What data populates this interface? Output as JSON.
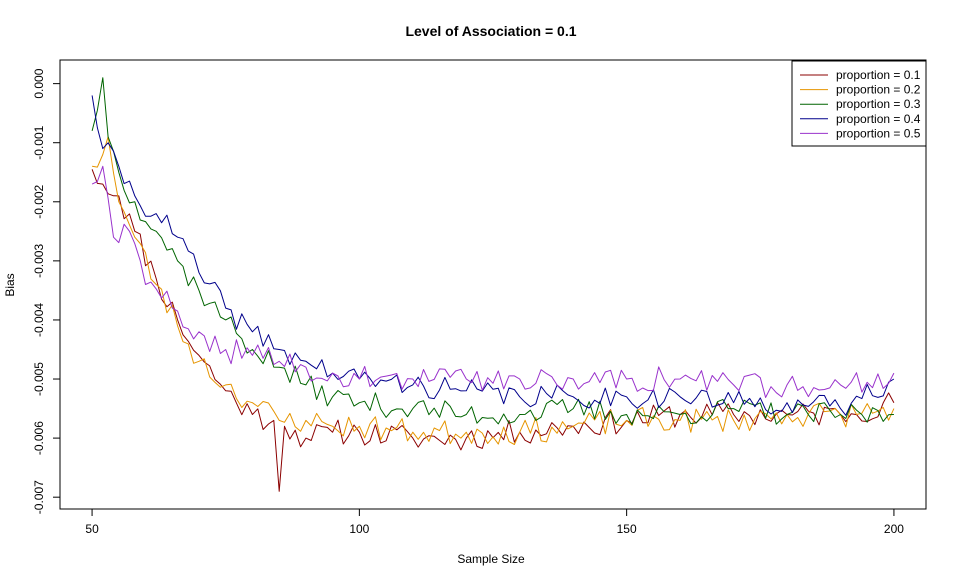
{
  "chart_data": {
    "type": "line",
    "title": "Level of Association = 0.1",
    "xlabel": "Sample Size",
    "ylabel": "Bias",
    "xlim": [
      44,
      206
    ],
    "ylim": [
      -0.0072,
      0.0004
    ],
    "x_ticks": [
      50,
      100,
      150,
      200
    ],
    "x_tick_labels": [
      "50",
      "100",
      "150",
      "200"
    ],
    "y_ticks": [
      -0.007,
      -0.006,
      -0.005,
      -0.004,
      -0.003,
      -0.002,
      -0.001,
      0.0
    ],
    "y_tick_labels": [
      "-0.007",
      "-0.006",
      "-0.005",
      "-0.004",
      "-0.003",
      "-0.002",
      "-0.001",
      "0.000"
    ],
    "grid": false,
    "legend_position": "top-right",
    "series": [
      {
        "name": "proportion = 0.1",
        "color": "#8B0000",
        "anchors": [
          [
            50,
            -0.00145
          ],
          [
            52,
            -0.0017
          ],
          [
            55,
            -0.0019
          ],
          [
            58,
            -0.0025
          ],
          [
            62,
            -0.0033
          ],
          [
            66,
            -0.004
          ],
          [
            70,
            -0.0046
          ],
          [
            75,
            -0.0052
          ],
          [
            80,
            -0.0056
          ],
          [
            84,
            -0.0057
          ],
          [
            85,
            -0.0069
          ],
          [
            86,
            -0.0058
          ],
          [
            90,
            -0.006
          ],
          [
            95,
            -0.0059
          ],
          [
            100,
            -0.0059
          ],
          [
            110,
            -0.006
          ],
          [
            120,
            -0.006
          ],
          [
            130,
            -0.0059
          ],
          [
            140,
            -0.0058
          ],
          [
            150,
            -0.0057
          ],
          [
            160,
            -0.0056
          ],
          [
            170,
            -0.0056
          ],
          [
            180,
            -0.0056
          ],
          [
            190,
            -0.0056
          ],
          [
            200,
            -0.0054
          ]
        ],
        "noise": 0.00022,
        "seed": 11
      },
      {
        "name": "proportion = 0.2",
        "color": "#E69500",
        "anchors": [
          [
            50,
            -0.0014
          ],
          [
            52,
            -0.0012
          ],
          [
            53,
            -0.0009
          ],
          [
            55,
            -0.002
          ],
          [
            58,
            -0.0026
          ],
          [
            62,
            -0.0034
          ],
          [
            66,
            -0.0041
          ],
          [
            70,
            -0.0047
          ],
          [
            75,
            -0.0051
          ],
          [
            80,
            -0.0054
          ],
          [
            85,
            -0.0057
          ],
          [
            90,
            -0.0057
          ],
          [
            95,
            -0.0058
          ],
          [
            100,
            -0.0058
          ],
          [
            110,
            -0.0059
          ],
          [
            120,
            -0.0059
          ],
          [
            130,
            -0.0059
          ],
          [
            140,
            -0.0058
          ],
          [
            150,
            -0.0057
          ],
          [
            160,
            -0.0057
          ],
          [
            170,
            -0.0057
          ],
          [
            180,
            -0.0056
          ],
          [
            190,
            -0.0056
          ],
          [
            200,
            -0.0055
          ]
        ],
        "noise": 0.00022,
        "seed": 23
      },
      {
        "name": "proportion = 0.3",
        "color": "#006400",
        "anchors": [
          [
            50,
            -0.0008
          ],
          [
            52,
            0.0001
          ],
          [
            53,
            -0.0009
          ],
          [
            55,
            -0.0015
          ],
          [
            58,
            -0.002
          ],
          [
            62,
            -0.0025
          ],
          [
            66,
            -0.003
          ],
          [
            70,
            -0.0035
          ],
          [
            75,
            -0.004
          ],
          [
            80,
            -0.0045
          ],
          [
            85,
            -0.0048
          ],
          [
            90,
            -0.0051
          ],
          [
            95,
            -0.0053
          ],
          [
            100,
            -0.0054
          ],
          [
            110,
            -0.0055
          ],
          [
            120,
            -0.0056
          ],
          [
            130,
            -0.0056
          ],
          [
            140,
            -0.0055
          ],
          [
            150,
            -0.0056
          ],
          [
            160,
            -0.0056
          ],
          [
            170,
            -0.0055
          ],
          [
            180,
            -0.0056
          ],
          [
            190,
            -0.0056
          ],
          [
            200,
            -0.0056
          ]
        ],
        "noise": 0.0002,
        "seed": 37
      },
      {
        "name": "proportion = 0.4",
        "color": "#00008B",
        "anchors": [
          [
            50,
            -0.0002
          ],
          [
            52,
            -0.0011
          ],
          [
            55,
            -0.0014
          ],
          [
            58,
            -0.0019
          ],
          [
            62,
            -0.0022
          ],
          [
            66,
            -0.0026
          ],
          [
            70,
            -0.0032
          ],
          [
            75,
            -0.0038
          ],
          [
            80,
            -0.0042
          ],
          [
            85,
            -0.0045
          ],
          [
            90,
            -0.0047
          ],
          [
            95,
            -0.0049
          ],
          [
            100,
            -0.005
          ],
          [
            110,
            -0.0051
          ],
          [
            120,
            -0.0052
          ],
          [
            130,
            -0.0053
          ],
          [
            140,
            -0.0053
          ],
          [
            150,
            -0.0053
          ],
          [
            160,
            -0.0053
          ],
          [
            170,
            -0.0054
          ],
          [
            180,
            -0.0054
          ],
          [
            190,
            -0.0055
          ],
          [
            200,
            -0.005
          ]
        ],
        "noise": 0.0002,
        "seed": 41
      },
      {
        "name": "proportion = 0.5",
        "color": "#9932CC",
        "anchors": [
          [
            50,
            -0.0017
          ],
          [
            52,
            -0.0014
          ],
          [
            54,
            -0.0026
          ],
          [
            57,
            -0.0025
          ],
          [
            60,
            -0.0034
          ],
          [
            65,
            -0.0038
          ],
          [
            70,
            -0.0042
          ],
          [
            75,
            -0.0045
          ],
          [
            80,
            -0.0046
          ],
          [
            85,
            -0.0047
          ],
          [
            90,
            -0.0048
          ],
          [
            95,
            -0.0049
          ],
          [
            100,
            -0.005
          ],
          [
            110,
            -0.005
          ],
          [
            120,
            -0.005
          ],
          [
            130,
            -0.005
          ],
          [
            140,
            -0.005
          ],
          [
            150,
            -0.005
          ],
          [
            160,
            -0.005
          ],
          [
            170,
            -0.0051
          ],
          [
            180,
            -0.0051
          ],
          [
            190,
            -0.0051
          ],
          [
            200,
            -0.0049
          ]
        ],
        "noise": 0.00022,
        "seed": 59
      }
    ]
  }
}
